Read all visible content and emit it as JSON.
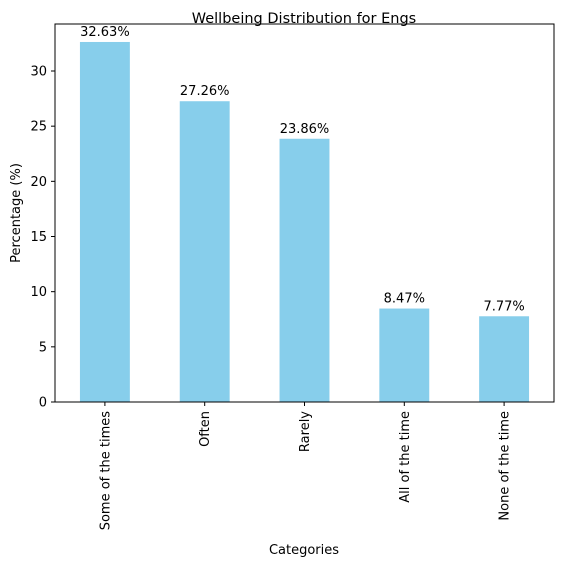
{
  "chart_data": {
    "type": "bar",
    "title": "Wellbeing Distribution for Engs",
    "xlabel": "Categories",
    "ylabel": "Percentage (%)",
    "categories": [
      "Some of the times",
      "Often",
      "Rarely",
      "All of the time",
      "None of the time"
    ],
    "values": [
      32.63,
      27.26,
      23.86,
      8.47,
      7.77
    ],
    "data_labels": [
      "32.63%",
      "27.26%",
      "23.86%",
      "8.47%",
      "7.77%"
    ],
    "ylim": [
      0,
      34.26
    ],
    "yticks": [
      0,
      5,
      10,
      15,
      20,
      25,
      30
    ],
    "bar_color": "#87CEEB",
    "grid": false,
    "legend": "none"
  }
}
